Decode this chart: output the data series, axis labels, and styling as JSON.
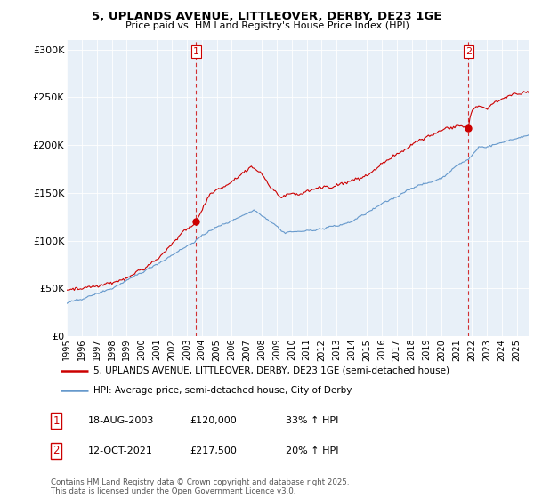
{
  "title1": "5, UPLANDS AVENUE, LITTLEOVER, DERBY, DE23 1GE",
  "title2": "Price paid vs. HM Land Registry's House Price Index (HPI)",
  "ylabel_ticks": [
    "£0",
    "£50K",
    "£100K",
    "£150K",
    "£200K",
    "£250K",
    "£300K"
  ],
  "ytick_vals": [
    0,
    50000,
    100000,
    150000,
    200000,
    250000,
    300000
  ],
  "ylim": [
    0,
    310000
  ],
  "xlim_start": 1995.0,
  "xlim_end": 2025.8,
  "xtick_years": [
    1995,
    1996,
    1997,
    1998,
    1999,
    2000,
    2001,
    2002,
    2003,
    2004,
    2005,
    2006,
    2007,
    2008,
    2009,
    2010,
    2011,
    2012,
    2013,
    2014,
    2015,
    2016,
    2017,
    2018,
    2019,
    2020,
    2021,
    2022,
    2023,
    2024,
    2025
  ],
  "legend_line1": "5, UPLANDS AVENUE, LITTLEOVER, DERBY, DE23 1GE (semi-detached house)",
  "legend_line2": "HPI: Average price, semi-detached house, City of Derby",
  "sale1_date": 2003.63,
  "sale1_price": 120000,
  "sale2_date": 2021.79,
  "sale2_price": 217500,
  "red_color": "#cc0000",
  "blue_color": "#6699cc",
  "chart_bg": "#e8f0f8",
  "footnote": "Contains HM Land Registry data © Crown copyright and database right 2025.\nThis data is licensed under the Open Government Licence v3.0.",
  "table_rows": [
    {
      "num": "1",
      "date": "18-AUG-2003",
      "price": "£120,000",
      "hpi": "33% ↑ HPI"
    },
    {
      "num": "2",
      "date": "12-OCT-2021",
      "price": "£217,500",
      "hpi": "20% ↑ HPI"
    }
  ]
}
